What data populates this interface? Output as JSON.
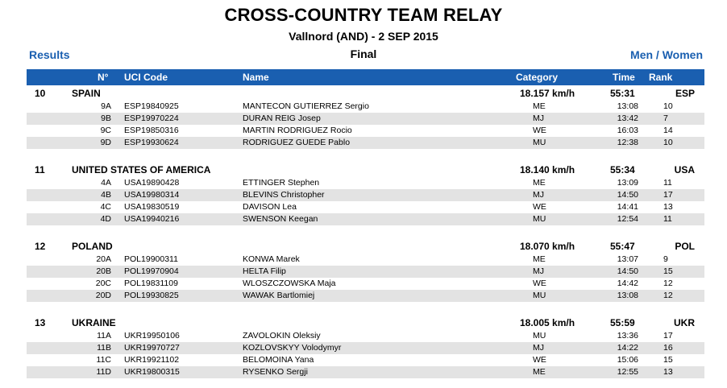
{
  "header": {
    "title": "CROSS-COUNTRY TEAM RELAY",
    "subtitle": "Vallnord (AND) - 2 SEP 2015",
    "stage": "Final",
    "results_link": "Results",
    "category_link": "Men / Women"
  },
  "columns": {
    "no": "N°",
    "uci": "UCI Code",
    "name": "Name",
    "category": "Category",
    "time": "Time",
    "rank": "Rank"
  },
  "teams": [
    {
      "rank": "10",
      "nation": "SPAIN",
      "speed": "18.157 km/h",
      "time": "55:31",
      "code": "ESP",
      "riders": [
        {
          "no": "9A",
          "uci": "ESP19840925",
          "name": "MANTECON GUTIERREZ Sergio",
          "cat": "ME",
          "time": "13:08",
          "rank": "10"
        },
        {
          "no": "9B",
          "uci": "ESP19970224",
          "name": "DURAN REIG Josep",
          "cat": "MJ",
          "time": "13:42",
          "rank": "7"
        },
        {
          "no": "9C",
          "uci": "ESP19850316",
          "name": "MARTIN RODRIGUEZ Rocio",
          "cat": "WE",
          "time": "16:03",
          "rank": "14"
        },
        {
          "no": "9D",
          "uci": "ESP19930624",
          "name": "RODRIGUEZ GUEDE Pablo",
          "cat": "MU",
          "time": "12:38",
          "rank": "10"
        }
      ]
    },
    {
      "rank": "11",
      "nation": "UNITED STATES OF AMERICA",
      "speed": "18.140 km/h",
      "time": "55:34",
      "code": "USA",
      "riders": [
        {
          "no": "4A",
          "uci": "USA19890428",
          "name": "ETTINGER Stephen",
          "cat": "ME",
          "time": "13:09",
          "rank": "11"
        },
        {
          "no": "4B",
          "uci": "USA19980314",
          "name": "BLEVINS Christopher",
          "cat": "MJ",
          "time": "14:50",
          "rank": "17"
        },
        {
          "no": "4C",
          "uci": "USA19830519",
          "name": "DAVISON Lea",
          "cat": "WE",
          "time": "14:41",
          "rank": "13"
        },
        {
          "no": "4D",
          "uci": "USA19940216",
          "name": "SWENSON Keegan",
          "cat": "MU",
          "time": "12:54",
          "rank": "11"
        }
      ]
    },
    {
      "rank": "12",
      "nation": "POLAND",
      "speed": "18.070 km/h",
      "time": "55:47",
      "code": "POL",
      "riders": [
        {
          "no": "20A",
          "uci": "POL19900311",
          "name": "KONWA Marek",
          "cat": "ME",
          "time": "13:07",
          "rank": "9"
        },
        {
          "no": "20B",
          "uci": "POL19970904",
          "name": "HELTA Filip",
          "cat": "MJ",
          "time": "14:50",
          "rank": "15"
        },
        {
          "no": "20C",
          "uci": "POL19831109",
          "name": "WLOSZCZOWSKA Maja",
          "cat": "WE",
          "time": "14:42",
          "rank": "12"
        },
        {
          "no": "20D",
          "uci": "POL19930825",
          "name": "WAWAK Bartlomiej",
          "cat": "MU",
          "time": "13:08",
          "rank": "12"
        }
      ]
    },
    {
      "rank": "13",
      "nation": "UKRAINE",
      "speed": "18.005 km/h",
      "time": "55:59",
      "code": "UKR",
      "riders": [
        {
          "no": "11A",
          "uci": "UKR19950106",
          "name": "ZAVOLOKIN Oleksiy",
          "cat": "MU",
          "time": "13:36",
          "rank": "17"
        },
        {
          "no": "11B",
          "uci": "UKR19970727",
          "name": "KOZLOVSKYY Volodymyr",
          "cat": "MJ",
          "time": "14:22",
          "rank": "16"
        },
        {
          "no": "11C",
          "uci": "UKR19921102",
          "name": "BELOMOINA Yana",
          "cat": "WE",
          "time": "15:06",
          "rank": "15"
        },
        {
          "no": "11D",
          "uci": "UKR19800315",
          "name": "RYSENKO Sergji",
          "cat": "ME",
          "time": "12:55",
          "rank": "13"
        }
      ]
    }
  ],
  "colors": {
    "accent": "#1a5fb0",
    "row_shade": "#e3e3e3"
  }
}
